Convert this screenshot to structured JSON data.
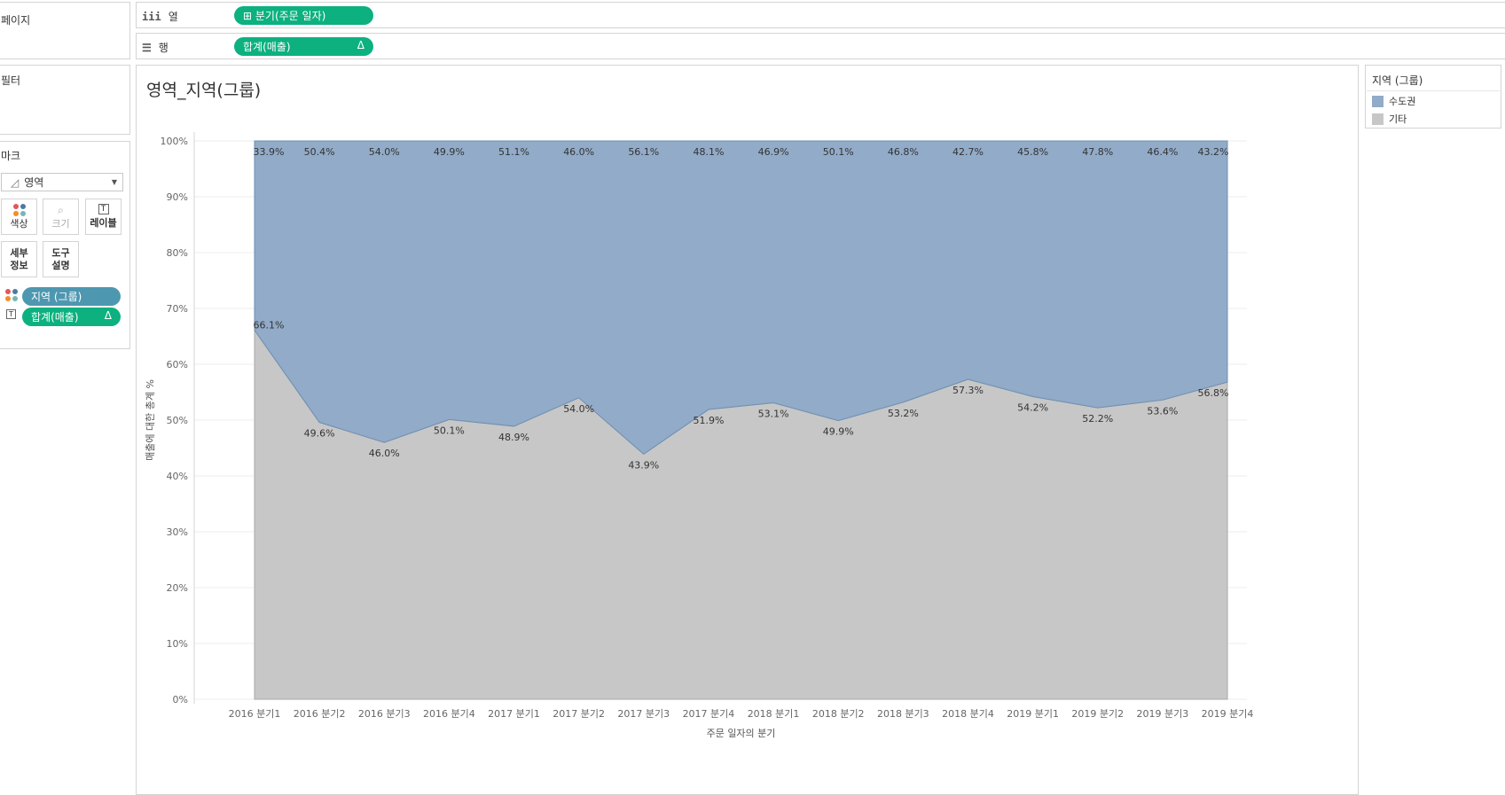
{
  "shelves": {
    "pages_label": "페이지",
    "filters_label": "필터",
    "columns": {
      "label": "열",
      "icon": "columns-icon",
      "pill": "⊞ 분기(주문 일자)"
    },
    "rows": {
      "label": "행",
      "icon": "rows-icon",
      "pill": "합계(매출)",
      "pill_delta": "Δ"
    }
  },
  "marks": {
    "title": "마크",
    "type": "영역",
    "buttons": [
      {
        "label": "색상",
        "icon": "color-icon"
      },
      {
        "label": "크기",
        "icon": "size-icon"
      },
      {
        "label": "레이블",
        "icon": "label-icon"
      },
      {
        "label": "세부\n정보",
        "icon": "detail-icon"
      },
      {
        "label": "도구\n설명",
        "icon": "tooltip-icon"
      }
    ],
    "fields": [
      {
        "label": "지역 (그룹)",
        "color": "#4e97b0"
      },
      {
        "label": "합계(매출)",
        "delta": "Δ",
        "color": "#0cb17f"
      }
    ]
  },
  "legend": {
    "title": "지역 (그룹)",
    "items": [
      {
        "label": "수도권",
        "color": "#91abc8"
      },
      {
        "label": "기타",
        "color": "#c7c7c7"
      }
    ]
  },
  "chart_data": {
    "type": "area",
    "title": "영역_지역(그룹)",
    "xlabel": "주문 일자의 분기",
    "ylabel": "매출에 대한 총계 %",
    "ylim": [
      0,
      100
    ],
    "yticks": [
      "0%",
      "10%",
      "20%",
      "30%",
      "40%",
      "50%",
      "60%",
      "70%",
      "80%",
      "90%",
      "100%"
    ],
    "categories": [
      "2016 분기1",
      "2016 분기2",
      "2016 분기3",
      "2016 분기4",
      "2017 분기1",
      "2017 분기2",
      "2017 분기3",
      "2017 분기4",
      "2018 분기1",
      "2018 분기2",
      "2018 분기3",
      "2018 분기4",
      "2019 분기1",
      "2019 분기2",
      "2019 분기3",
      "2019 분기4"
    ],
    "stacked_percent": true,
    "series": [
      {
        "name": "기타",
        "color": "#c7c7c7",
        "values": [
          66.1,
          49.6,
          46.0,
          50.1,
          48.9,
          54.0,
          43.9,
          51.9,
          53.1,
          49.9,
          53.2,
          57.3,
          54.2,
          52.2,
          53.6,
          56.8
        ],
        "labels": [
          "66.1%",
          "49.6%",
          "46.0%",
          "50.1%",
          "48.9%",
          "54.0%",
          "43.9%",
          "51.9%",
          "53.1%",
          "49.9%",
          "53.2%",
          "57.3%",
          "54.2%",
          "52.2%",
          "53.6%",
          "56.8%"
        ]
      },
      {
        "name": "수도권",
        "color": "#91abc8",
        "values": [
          33.9,
          50.4,
          54.0,
          49.9,
          51.1,
          46.0,
          56.1,
          48.1,
          46.9,
          50.1,
          46.8,
          42.7,
          45.8,
          47.8,
          46.4,
          43.2
        ],
        "labels": [
          "33.9%",
          "50.4%",
          "54.0%",
          "49.9%",
          "51.1%",
          "46.0%",
          "56.1%",
          "48.1%",
          "46.9%",
          "50.1%",
          "46.8%",
          "42.7%",
          "45.8%",
          "47.8%",
          "46.4%",
          "43.2%"
        ]
      }
    ],
    "grid": true,
    "legend_position": "right"
  }
}
